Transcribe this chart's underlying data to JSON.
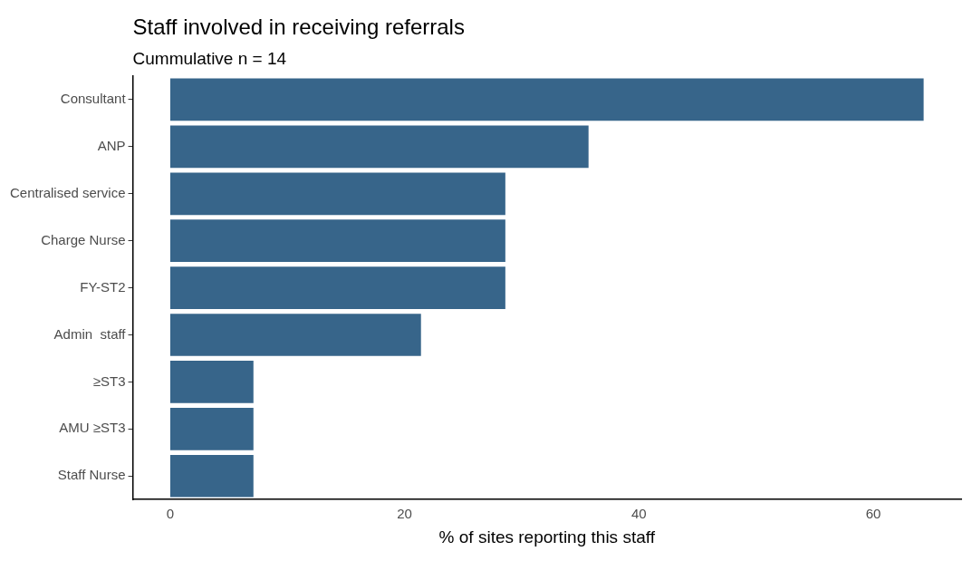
{
  "chart_data": {
    "type": "bar",
    "orientation": "horizontal",
    "title": "Staff involved in receiving referrals",
    "subtitle": "Cummulative n = 14",
    "xlabel": "% of sites reporting this staff",
    "categories": [
      "Consultant",
      "ANP",
      "Centralised service",
      "Charge Nurse",
      "FY-ST2",
      "Admin  staff",
      "≥ST3",
      "AMU ≥ST3",
      "Staff Nurse"
    ],
    "values": [
      64.3,
      35.7,
      28.6,
      28.6,
      28.6,
      21.4,
      7.1,
      7.1,
      7.1
    ],
    "color": "#37658a",
    "xlim": [
      -3.2,
      67.5
    ],
    "xticks": [
      0,
      20,
      40,
      60
    ],
    "grid": false,
    "legend": false
  }
}
